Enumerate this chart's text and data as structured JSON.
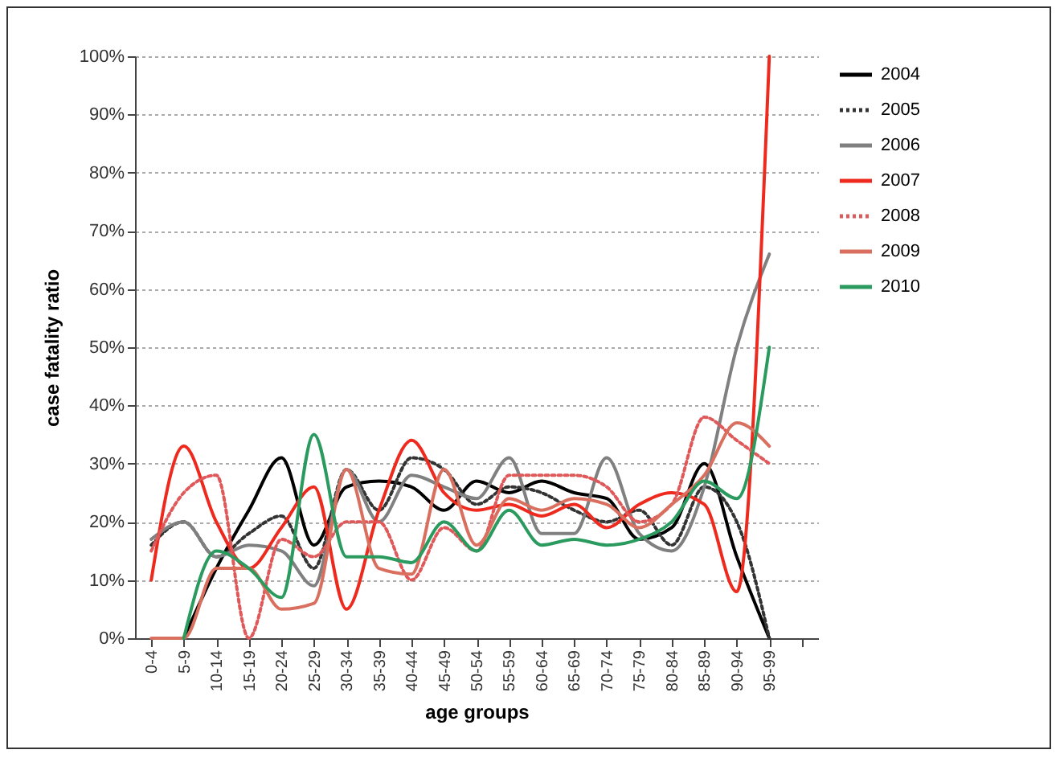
{
  "chart_data": {
    "type": "line",
    "xlabel": "age groups",
    "ylabel": "case fatality ratio",
    "categories": [
      "0-4",
      "5-9",
      "10-14",
      "15-19",
      "20-24",
      "25-29",
      "30-34",
      "35-39",
      "40-44",
      "45-49",
      "50-54",
      "55-59",
      "60-64",
      "65-69",
      "70-74",
      "75-79",
      "80-84",
      "85-89",
      "90-94",
      "95-99",
      null
    ],
    "ylim": [
      0,
      100
    ],
    "yticks": [
      {
        "value": 0,
        "label": "0%"
      },
      {
        "value": 10,
        "label": "10%"
      },
      {
        "value": 20,
        "label": "20%"
      },
      {
        "value": 30,
        "label": "30%"
      },
      {
        "value": 40,
        "label": "40%"
      },
      {
        "value": 50,
        "label": "50%"
      },
      {
        "value": 60,
        "label": "60%"
      },
      {
        "value": 70,
        "label": "70%"
      },
      {
        "value": 80,
        "label": "80%"
      },
      {
        "value": 90,
        "label": "90%"
      },
      {
        "value": 100,
        "label": "100%"
      }
    ],
    "grid": "y",
    "legend": "right",
    "marker": "none",
    "series": [
      {
        "name": "2004",
        "color": "#000000",
        "line_style": "solid",
        "values": [
          null,
          0,
          12,
          22,
          31,
          16,
          26,
          27,
          26,
          22,
          27,
          25,
          27,
          25,
          24,
          17,
          19,
          30,
          14,
          0,
          null
        ]
      },
      {
        "name": "2005",
        "color": "#333333",
        "line_style": "dotted",
        "values": [
          16,
          20,
          14,
          18,
          21,
          12,
          29,
          22,
          31,
          29,
          23,
          26,
          25,
          22,
          20,
          22,
          16,
          26,
          20,
          0,
          null
        ]
      },
      {
        "name": "2006",
        "color": "#808080",
        "line_style": "solid",
        "values": [
          17,
          20,
          14,
          16,
          15,
          9,
          29,
          20,
          28,
          26,
          24,
          31,
          18,
          18,
          31,
          18,
          15,
          26,
          50,
          66,
          null
        ]
      },
      {
        "name": "2007",
        "color": "#ee2a1f",
        "line_style": "solid",
        "values": [
          10,
          33,
          20,
          12,
          19,
          26,
          5,
          22,
          34,
          25,
          22,
          23,
          21,
          23,
          19,
          23,
          25,
          23,
          8,
          100,
          null
        ]
      },
      {
        "name": "2008",
        "color": "#e0595a",
        "line_style": "dotted",
        "values": [
          15,
          25,
          28,
          0,
          17,
          14,
          20,
          20,
          10,
          19,
          15,
          28,
          28,
          28,
          26,
          20,
          23,
          38,
          34,
          30,
          null
        ]
      },
      {
        "name": "2009",
        "color": "#d9705f",
        "line_style": "solid",
        "values": [
          0,
          0,
          12,
          12,
          5,
          6,
          29,
          12,
          11,
          29,
          16,
          24,
          22,
          24,
          23,
          19,
          23,
          28,
          37,
          33,
          null
        ]
      },
      {
        "name": "2010",
        "color": "#2b9a5e",
        "line_style": "solid",
        "values": [
          null,
          0,
          15,
          12,
          7,
          35,
          14,
          14,
          13,
          20,
          15,
          22,
          16,
          17,
          16,
          17,
          20,
          27,
          24,
          50,
          null
        ]
      }
    ]
  }
}
